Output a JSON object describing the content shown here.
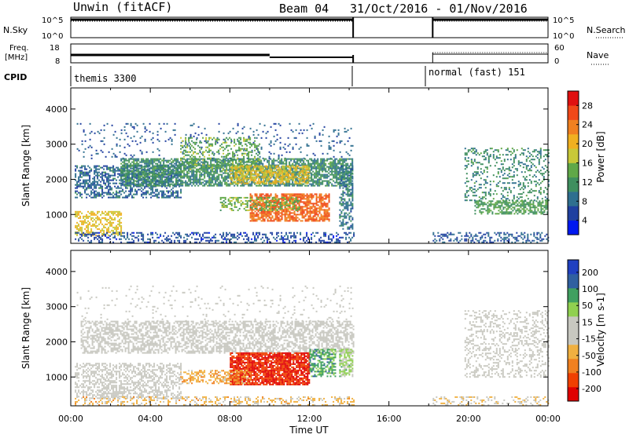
{
  "header": {
    "station": "Unwin (fitACF)",
    "beam": "Beam 04",
    "date_range": "31/Oct/2016 - 01/Nov/2016"
  },
  "panels": {
    "nsky": {
      "label": "N.Sky",
      "right_label": "N.Search",
      "left_ticks": [
        "10^5",
        "10^0"
      ],
      "right_ticks": [
        "10^5",
        "10^0"
      ]
    },
    "freq": {
      "label_line1": "Freq.",
      "label_line2": "[MHz]",
      "right_label": "Nave",
      "left_ticks": [
        "18",
        "8"
      ],
      "right_ticks": [
        "60",
        "0"
      ]
    },
    "cpid": {
      "label": "CPID",
      "segments": [
        {
          "text": "themis 3300"
        },
        {
          "text": "normal (fast) 151"
        }
      ]
    }
  },
  "chart_data": [
    {
      "type": "heatmap",
      "title": "",
      "ylabel": "Slant Range [km]",
      "xlabel": "",
      "ylim": [
        180,
        4600
      ],
      "yticks": [
        "4000",
        "3000",
        "2000",
        "1000"
      ],
      "colorbar": {
        "label": "Power [dB]",
        "ticks": [
          "28",
          "24",
          "20",
          "16",
          "12",
          "8",
          "4"
        ],
        "range": [
          0,
          30
        ],
        "colors": [
          "#0018f0",
          "#2040a0",
          "#2f6f8f",
          "#3f8f5f",
          "#60a848",
          "#c8c838",
          "#f0b020",
          "#f08020",
          "#f04818",
          "#e01010"
        ]
      },
      "bands": [
        {
          "t0": 0.3,
          "t1": 14.2,
          "r0": 2600,
          "r1": 3600,
          "level": 6,
          "density": 0.08
        },
        {
          "t0": 0.2,
          "t1": 5.5,
          "r0": 1500,
          "r1": 2400,
          "level": 7,
          "density": 0.55
        },
        {
          "t0": 2.5,
          "t1": 14.2,
          "r0": 1800,
          "r1": 2600,
          "level": 10,
          "density": 0.7
        },
        {
          "t0": 5.5,
          "t1": 9.5,
          "r0": 2200,
          "r1": 3200,
          "level": 13,
          "density": 0.3
        },
        {
          "t0": 8.0,
          "t1": 12.0,
          "r0": 1900,
          "r1": 2400,
          "level": 18,
          "density": 0.6
        },
        {
          "t0": 9.0,
          "t1": 13.0,
          "r0": 800,
          "r1": 1600,
          "level": 24,
          "density": 0.75
        },
        {
          "t0": 7.5,
          "t1": 11.5,
          "r0": 1100,
          "r1": 1500,
          "level": 14,
          "density": 0.5
        },
        {
          "t0": 0.2,
          "t1": 2.5,
          "r0": 400,
          "r1": 1100,
          "level": 18,
          "density": 0.5
        },
        {
          "t0": 0.2,
          "t1": 14.2,
          "r0": 200,
          "r1": 500,
          "level": 5,
          "density": 0.35
        },
        {
          "t0": 13.5,
          "t1": 14.2,
          "r0": 600,
          "r1": 2400,
          "level": 8,
          "density": 0.5
        },
        {
          "t0": 18.2,
          "t1": 24.0,
          "r0": 200,
          "r1": 500,
          "level": 6,
          "density": 0.35
        },
        {
          "t0": 20.3,
          "t1": 24.0,
          "r0": 1000,
          "r1": 1400,
          "level": 12,
          "density": 0.6
        },
        {
          "t0": 19.8,
          "t1": 24.0,
          "r0": 1400,
          "r1": 2900,
          "level": 10,
          "density": 0.25
        }
      ]
    },
    {
      "type": "heatmap",
      "title": "",
      "ylabel": "Slant Range [km]",
      "xlabel": "Time UT",
      "ylim": [
        180,
        4600
      ],
      "yticks": [
        "4000",
        "3000",
        "2000",
        "1000"
      ],
      "xticks": [
        "00:00",
        "04:00",
        "08:00",
        "12:00",
        "16:00",
        "20:00",
        "00:00"
      ],
      "xrange_hours": [
        0,
        24
      ],
      "colorbar": {
        "label": "Velocity [m s-1]",
        "ticks": [
          "200",
          "100",
          "50",
          "15",
          "-15",
          "-50",
          "-100",
          "-200"
        ],
        "range": [
          -250,
          250
        ],
        "colors": [
          "#e00000",
          "#f04000",
          "#f08020",
          "#f0b040",
          "#c8c8c0",
          "#c8c8c0",
          "#90d050",
          "#40a060",
          "#3060a0",
          "#2040c0"
        ]
      },
      "bands": [
        {
          "t0": 0.3,
          "t1": 14.2,
          "r0": 2600,
          "r1": 3600,
          "level": 0,
          "density": 0.06
        },
        {
          "t0": 0.5,
          "t1": 14.2,
          "r0": 1700,
          "r1": 2600,
          "level": 0,
          "density": 0.55
        },
        {
          "t0": 8.0,
          "t1": 12.0,
          "r0": 800,
          "r1": 1700,
          "level": -200,
          "density": 0.85
        },
        {
          "t0": 12.0,
          "t1": 13.3,
          "r0": 1000,
          "r1": 1800,
          "level": 120,
          "density": 0.6
        },
        {
          "t0": 5.5,
          "t1": 9.0,
          "r0": 800,
          "r1": 1200,
          "level": -80,
          "density": 0.45
        },
        {
          "t0": 0.2,
          "t1": 5.5,
          "r0": 400,
          "r1": 1400,
          "level": 0,
          "density": 0.5
        },
        {
          "t0": 0.2,
          "t1": 14.2,
          "r0": 200,
          "r1": 450,
          "level": -60,
          "density": 0.3
        },
        {
          "t0": 13.5,
          "t1": 14.2,
          "r0": 1000,
          "r1": 1800,
          "level": 60,
          "density": 0.6
        },
        {
          "t0": 18.2,
          "t1": 24.0,
          "r0": 200,
          "r1": 450,
          "level": -40,
          "density": 0.3
        },
        {
          "t0": 19.8,
          "t1": 24.0,
          "r0": 1000,
          "r1": 2900,
          "level": 0,
          "density": 0.3
        }
      ]
    }
  ]
}
